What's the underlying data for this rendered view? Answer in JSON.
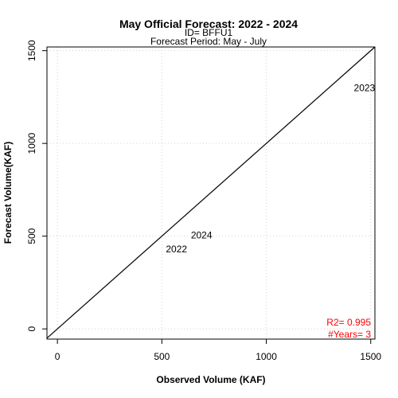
{
  "chart_data": {
    "type": "scatter",
    "title": "May Official Forecast: 2022 - 2024",
    "subtitle_lines": [
      "ID= BFFU1",
      "Forecast Period:  May - July"
    ],
    "xlabel": "Observed Volume (KAF)",
    "ylabel": "Forecast Volume(KAF)",
    "xlim": [
      -50,
      1520
    ],
    "ylim": [
      -55,
      1520
    ],
    "x_ticks": [
      0,
      500,
      1000,
      1500
    ],
    "y_ticks": [
      0,
      500,
      1000,
      1500
    ],
    "grid": true,
    "reference_line": "1:1",
    "points": [
      {
        "label": "2022",
        "x": 570,
        "y": 430
      },
      {
        "label": "2024",
        "x": 690,
        "y": 505
      },
      {
        "label": "2023",
        "x": 1470,
        "y": 1300
      }
    ],
    "stats": {
      "r2": "R2= 0.995",
      "n_years": "#Years= 3",
      "color": "#ff0000"
    }
  }
}
